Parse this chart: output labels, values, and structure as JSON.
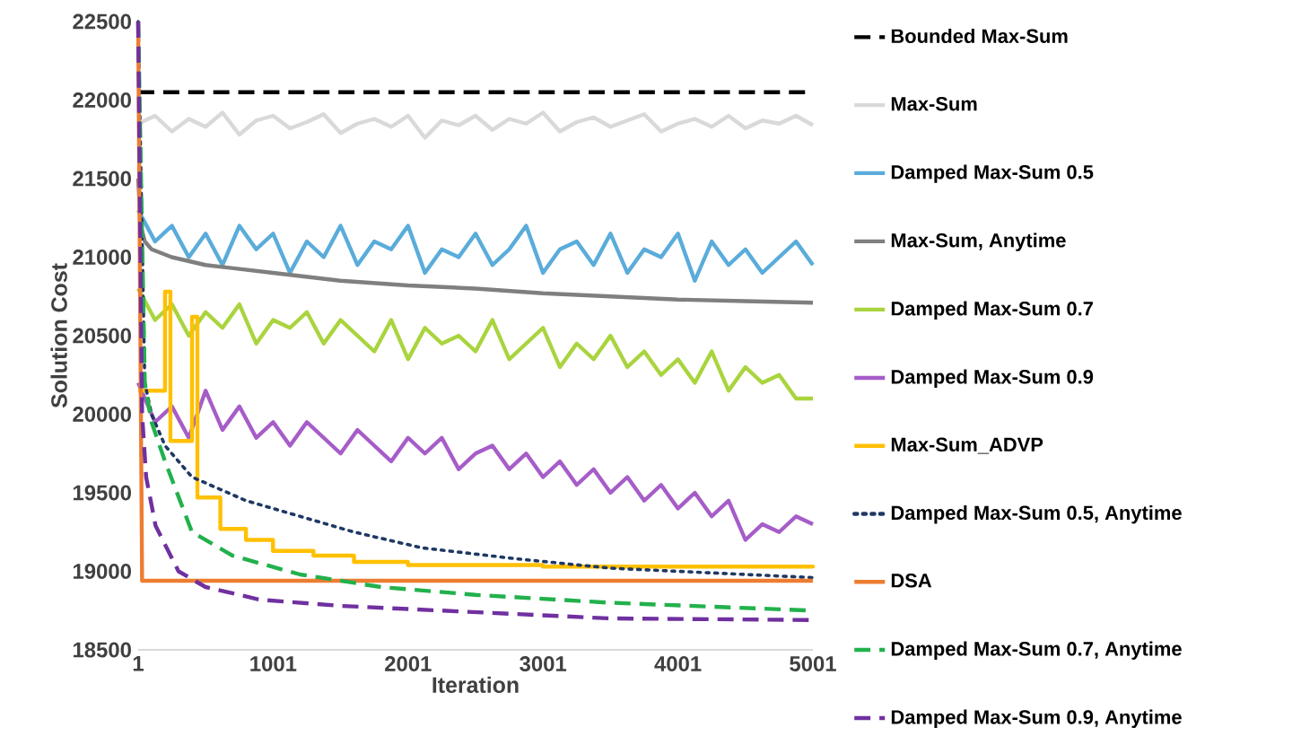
{
  "chart_data": {
    "type": "line",
    "xlabel": "Iteration",
    "ylabel": "Solution Cost",
    "xlim": [
      1,
      5001
    ],
    "xticks": [
      1,
      1001,
      2001,
      3001,
      4001,
      5001
    ],
    "ylim": [
      18500,
      22500
    ],
    "yticks": [
      18500,
      19000,
      19500,
      20000,
      20500,
      21000,
      21500,
      22000,
      22500
    ],
    "legend": "right",
    "series": [
      {
        "name": "Bounded Max-Sum",
        "color": "#000000",
        "line_style": "dashed",
        "x": [
          1,
          5001
        ],
        "values": [
          22050,
          22050
        ]
      },
      {
        "name": "Max-Sum",
        "color": "#d9d9d9",
        "x": [
          1,
          126,
          251,
          376,
          501,
          626,
          751,
          876,
          1001,
          1126,
          1251,
          1376,
          1501,
          1626,
          1751,
          1876,
          2001,
          2126,
          2251,
          2376,
          2501,
          2626,
          2751,
          2876,
          3001,
          3126,
          3251,
          3376,
          3501,
          3626,
          3751,
          3876,
          4001,
          4126,
          4251,
          4376,
          4501,
          4626,
          4751,
          4876,
          5001
        ],
        "values": [
          21850,
          21900,
          21800,
          21880,
          21830,
          21920,
          21780,
          21870,
          21900,
          21820,
          21860,
          21910,
          21790,
          21850,
          21880,
          21830,
          21900,
          21760,
          21870,
          21840,
          21900,
          21810,
          21880,
          21850,
          21920,
          21800,
          21860,
          21890,
          21830,
          21870,
          21910,
          21800,
          21850,
          21880,
          21830,
          21900,
          21820,
          21870,
          21850,
          21900,
          21840
        ]
      },
      {
        "name": "Damped Max-Sum 0.5",
        "color": "#5aacda",
        "x": [
          1,
          126,
          251,
          376,
          501,
          626,
          751,
          876,
          1001,
          1126,
          1251,
          1376,
          1501,
          1626,
          1751,
          1876,
          2001,
          2126,
          2251,
          2376,
          2501,
          2626,
          2751,
          2876,
          3001,
          3126,
          3251,
          3376,
          3501,
          3626,
          3751,
          3876,
          4001,
          4126,
          4251,
          4376,
          4501,
          4626,
          4751,
          4876,
          5001
        ],
        "values": [
          21300,
          21100,
          21200,
          21000,
          21150,
          20950,
          21200,
          21050,
          21150,
          20900,
          21100,
          21000,
          21200,
          20950,
          21100,
          21050,
          21200,
          20900,
          21050,
          21000,
          21150,
          20950,
          21050,
          21200,
          20900,
          21050,
          21100,
          20950,
          21150,
          20900,
          21050,
          21000,
          21150,
          20850,
          21100,
          20950,
          21050,
          20900,
          21000,
          21100,
          20950
        ]
      },
      {
        "name": "Max-Sum, Anytime",
        "color": "#7f7f7f",
        "x": [
          1,
          20,
          50,
          100,
          250,
          500,
          1000,
          1500,
          2000,
          2500,
          3000,
          3500,
          4000,
          4500,
          5001
        ],
        "values": [
          21500,
          21200,
          21100,
          21050,
          21000,
          20950,
          20900,
          20850,
          20820,
          20800,
          20770,
          20750,
          20730,
          20720,
          20710
        ]
      },
      {
        "name": "Damped Max-Sum 0.7",
        "color": "#a9d43e",
        "x": [
          1,
          126,
          251,
          376,
          501,
          626,
          751,
          876,
          1001,
          1126,
          1251,
          1376,
          1501,
          1626,
          1751,
          1876,
          2001,
          2126,
          2251,
          2376,
          2501,
          2626,
          2751,
          2876,
          3001,
          3126,
          3251,
          3376,
          3501,
          3626,
          3751,
          3876,
          4001,
          4126,
          4251,
          4376,
          4501,
          4626,
          4751,
          4876,
          5001
        ],
        "values": [
          20800,
          20600,
          20700,
          20500,
          20650,
          20550,
          20700,
          20450,
          20600,
          20550,
          20650,
          20450,
          20600,
          20500,
          20400,
          20600,
          20350,
          20550,
          20450,
          20500,
          20400,
          20600,
          20350,
          20450,
          20550,
          20300,
          20450,
          20350,
          20500,
          20300,
          20400,
          20250,
          20350,
          20200,
          20400,
          20150,
          20300,
          20200,
          20250,
          20100,
          20100
        ]
      },
      {
        "name": "Damped Max-Sum 0.9",
        "color": "#a65dc8",
        "x": [
          1,
          126,
          251,
          376,
          501,
          626,
          751,
          876,
          1001,
          1126,
          1251,
          1376,
          1501,
          1626,
          1751,
          1876,
          2001,
          2126,
          2251,
          2376,
          2501,
          2626,
          2751,
          2876,
          3001,
          3126,
          3251,
          3376,
          3501,
          3626,
          3751,
          3876,
          4001,
          4126,
          4251,
          4376,
          4501,
          4626,
          4751,
          4876,
          5001
        ],
        "values": [
          20200,
          19950,
          20050,
          19850,
          20150,
          19900,
          20050,
          19850,
          19950,
          19800,
          19950,
          19850,
          19750,
          19900,
          19800,
          19700,
          19850,
          19750,
          19850,
          19650,
          19750,
          19800,
          19650,
          19750,
          19600,
          19700,
          19550,
          19650,
          19500,
          19600,
          19450,
          19550,
          19400,
          19500,
          19350,
          19450,
          19200,
          19300,
          19250,
          19350,
          19300
        ]
      },
      {
        "name": "Max-Sum_ADVP",
        "color": "#ffc000",
        "type": "step",
        "x": [
          1,
          200,
          240,
          400,
          440,
          610,
          800,
          1000,
          1300,
          1600,
          2000,
          3000,
          5001
        ],
        "values": [
          20150,
          20780,
          19830,
          20620,
          19470,
          19270,
          19200,
          19130,
          19100,
          19060,
          19040,
          19030,
          19020
        ]
      },
      {
        "name": "Damped Max-Sum 0.5, Anytime",
        "color": "#1f3864",
        "line_style": "dotted",
        "x": [
          1,
          50,
          100,
          200,
          400,
          800,
          1200,
          1600,
          2100,
          2800,
          3500,
          4500,
          5001
        ],
        "values": [
          22500,
          20200,
          20000,
          19800,
          19600,
          19450,
          19350,
          19250,
          19150,
          19080,
          19020,
          18980,
          18960
        ]
      },
      {
        "name": "DSA",
        "color": "#ed7d31",
        "x": [
          1,
          30,
          5001
        ],
        "values": [
          22500,
          18940,
          18940
        ]
      },
      {
        "name": "Damped Max-Sum 0.7, Anytime",
        "color": "#22b14c",
        "line_style": "dashed",
        "x": [
          1,
          50,
          100,
          200,
          400,
          700,
          1200,
          1800,
          2500,
          3500,
          5001
        ],
        "values": [
          22500,
          20200,
          19950,
          19700,
          19250,
          19100,
          18980,
          18900,
          18850,
          18800,
          18750
        ]
      },
      {
        "name": "Damped Max-Sum 0.9, Anytime",
        "color": "#7030a0",
        "line_style": "dashed",
        "x": [
          1,
          30,
          60,
          130,
          300,
          500,
          900,
          1500,
          2500,
          3500,
          5001
        ],
        "values": [
          22500,
          20000,
          19600,
          19290,
          19000,
          18900,
          18820,
          18780,
          18740,
          18700,
          18690
        ]
      }
    ]
  }
}
